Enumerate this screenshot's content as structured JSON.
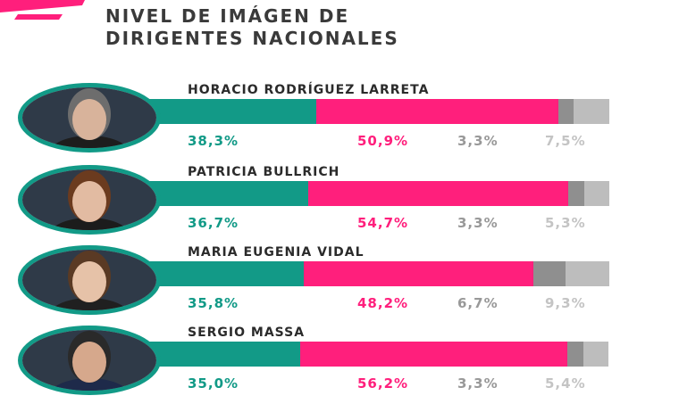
{
  "title": {
    "line1": "NIVEL DE IMÁGEN DE",
    "line2": "DIRIGENTES NACIONALES"
  },
  "colors": {
    "positive": "#129a87",
    "negative": "#ff1f7c",
    "ns": "#8f8f8f",
    "nc": "#bdbdbd",
    "accent": "#ff1f7c"
  },
  "chart_data": {
    "type": "bar",
    "orientation": "horizontal",
    "stacked": true,
    "title": "NIVEL DE IMÁGEN DE DIRIGENTES NACIONALES",
    "categories": [
      "HORACIO RODRÍGUEZ LARRETA",
      "PATRICIA BULLRICH",
      "MARIA EUGENIA VIDAL",
      "SERGIO MASSA"
    ],
    "series": [
      {
        "color": "#129a87",
        "values": [
          38.3,
          36.7,
          35.8,
          35.0
        ],
        "labels": [
          "38,3%",
          "36,7%",
          "35,8%",
          "35,0%"
        ]
      },
      {
        "color": "#ff1f7c",
        "values": [
          50.9,
          54.7,
          48.2,
          56.2
        ],
        "labels": [
          "50,9%",
          "54,7%",
          "48,2%",
          "56,2%"
        ]
      },
      {
        "color": "#8f8f8f",
        "values": [
          3.3,
          3.3,
          6.7,
          3.3
        ],
        "labels": [
          "3,3%",
          "3,3%",
          "6,7%",
          "3,3%"
        ]
      },
      {
        "color": "#bdbdbd",
        "values": [
          7.5,
          5.3,
          9.3,
          5.4
        ],
        "labels": [
          "7,5%",
          "5,3%",
          "9,3%",
          "5,4%"
        ]
      }
    ],
    "xlim": [
      0,
      100
    ],
    "grid": false,
    "legend": "none"
  }
}
